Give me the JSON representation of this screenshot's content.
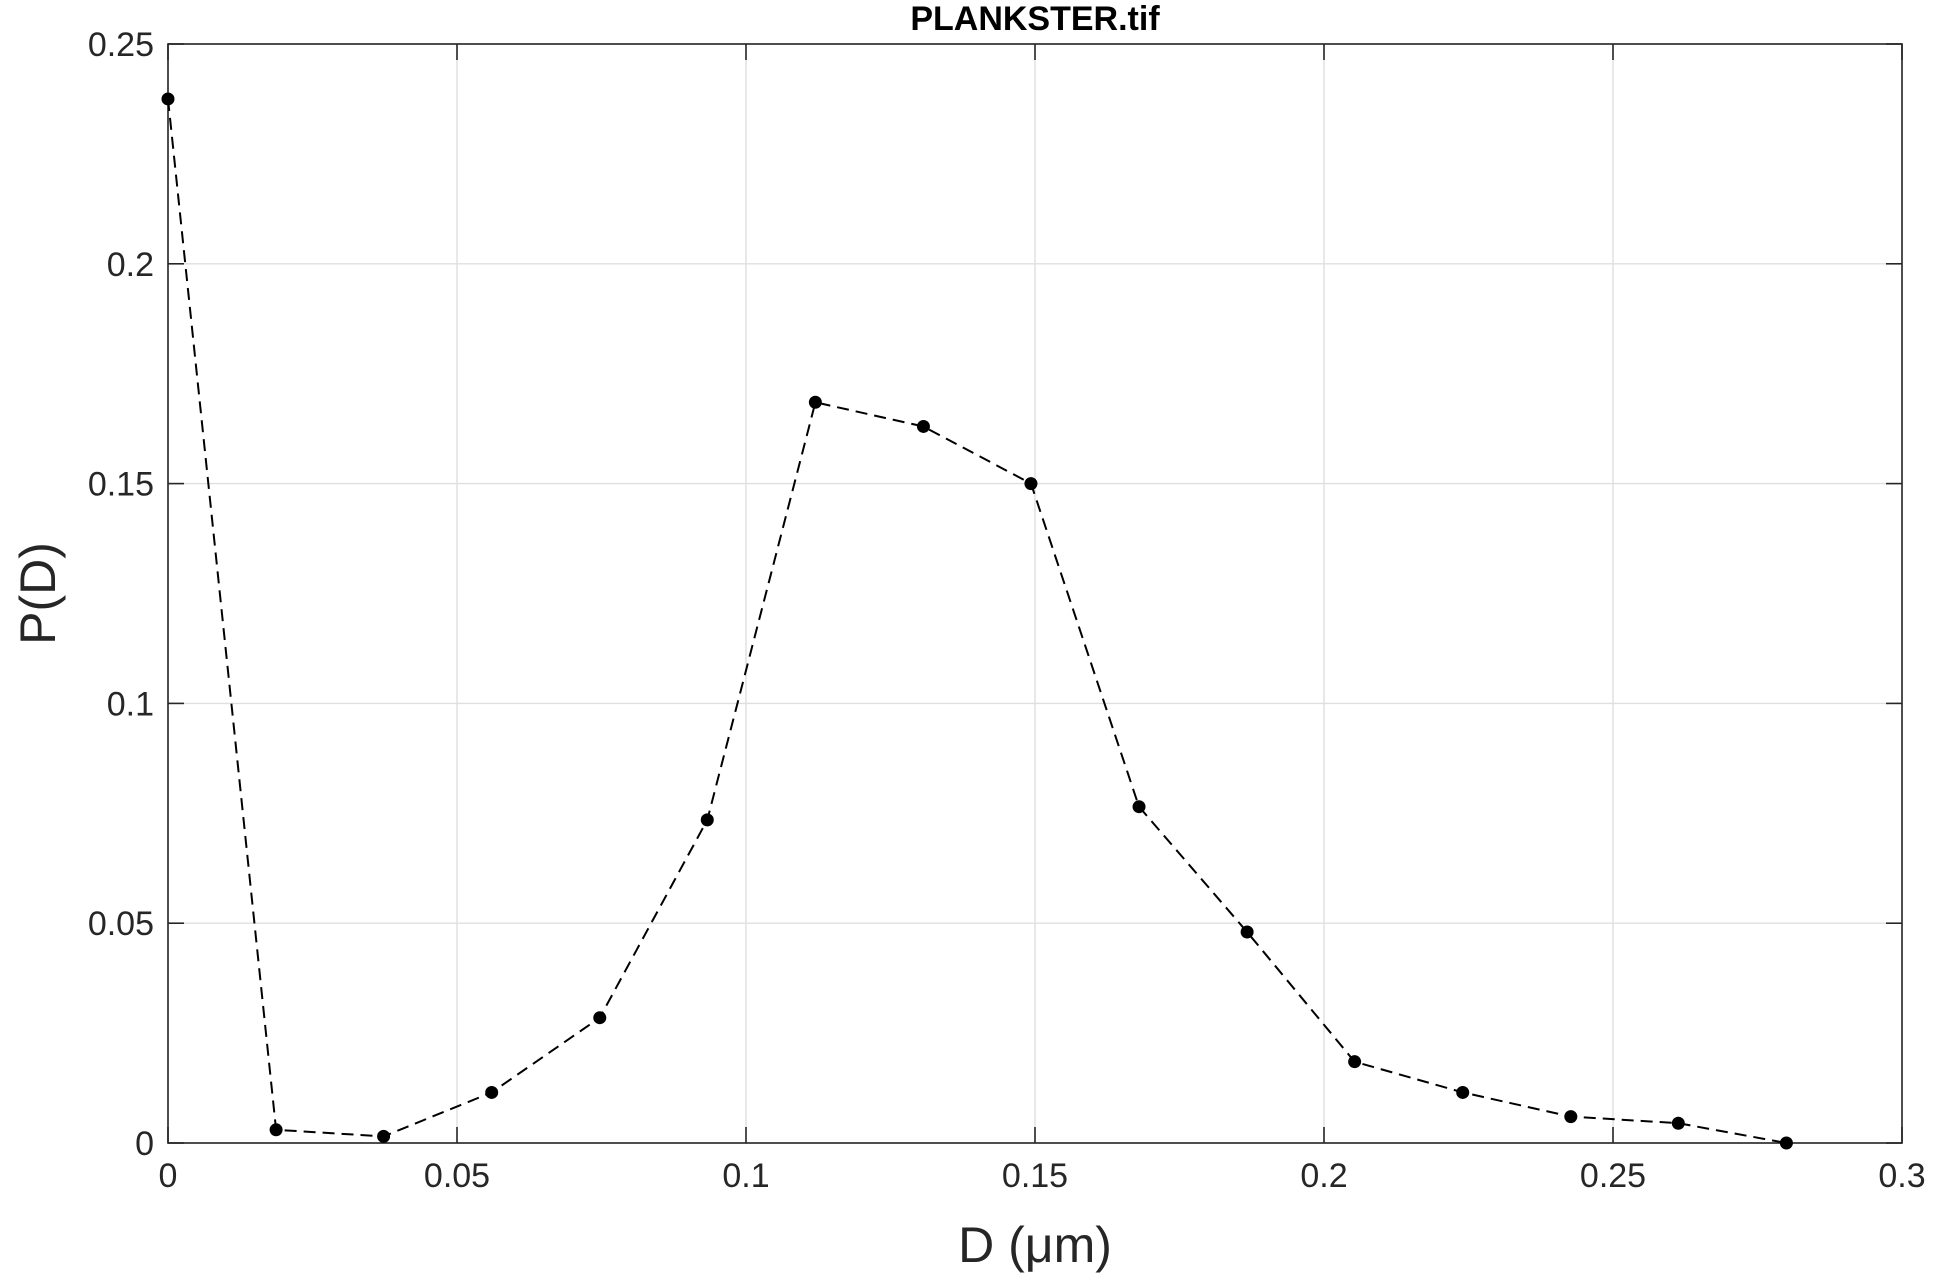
{
  "chart_data": {
    "type": "line",
    "title": "PLANKSTER.tif",
    "xlabel": "D  (μm)",
    "ylabel": "P(D)",
    "xlim": [
      0,
      0.3
    ],
    "ylim": [
      0,
      0.25
    ],
    "xticks": [
      0,
      0.05,
      0.1,
      0.15,
      0.2,
      0.25,
      0.3
    ],
    "xtick_labels": [
      "0",
      "0.05",
      "0.1",
      "0.15",
      "0.2",
      "0.25",
      "0.3"
    ],
    "yticks": [
      0,
      0.05,
      0.1,
      0.15,
      0.2,
      0.25
    ],
    "ytick_labels": [
      "0",
      "0.05",
      "0.1",
      "0.15",
      "0.2",
      "0.25"
    ],
    "grid": true,
    "line_style": "dashed",
    "marker": "filled-circle",
    "color": "#000000",
    "series": [
      {
        "x": [
          0,
          0.0187,
          0.0373,
          0.056,
          0.0747,
          0.0933,
          0.112,
          0.1307,
          0.1493,
          0.168,
          0.1867,
          0.2053,
          0.224,
          0.2427,
          0.2613,
          0.28
        ],
        "y": [
          0.2375,
          0.003,
          0.0015,
          0.0115,
          0.0285,
          0.0735,
          0.1685,
          0.163,
          0.15,
          0.0765,
          0.048,
          0.0185,
          0.0115,
          0.006,
          0.0045,
          0.0
        ]
      }
    ]
  }
}
